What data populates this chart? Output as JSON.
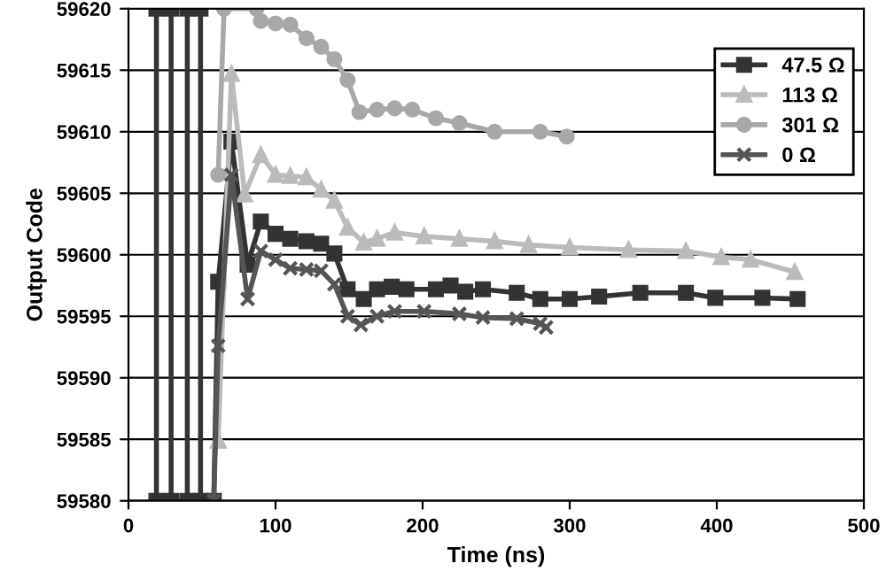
{
  "chart_data": {
    "type": "line",
    "xlabel": "Time (ns)",
    "ylabel": "Output Code",
    "xlim": [
      0,
      500
    ],
    "xticks": [
      0,
      100,
      200,
      300,
      400,
      500
    ],
    "ylim": [
      59580,
      59620
    ],
    "yticks": [
      59580,
      59585,
      59590,
      59595,
      59600,
      59605,
      59610,
      59615,
      59620
    ],
    "grid": "y",
    "legend": "top right",
    "line_style": "solid",
    "series": [
      {
        "name": "47.5 Ω",
        "color": "#333333",
        "marker": "square",
        "x": [
          19,
          19,
          29,
          29,
          40,
          40,
          49,
          49,
          58,
          61,
          70,
          81,
          90,
          100,
          110,
          121,
          131,
          140,
          149,
          160,
          169,
          179,
          189,
          209,
          219,
          229,
          241,
          264,
          280,
          300,
          320,
          348,
          379,
          399,
          431,
          455
        ],
        "values": [
          59580,
          59620,
          59620,
          59580,
          59580,
          59620,
          59620,
          59580,
          59580,
          59597.8,
          59609.2,
          59599.2,
          59602.7,
          59601.7,
          59601.3,
          59601.1,
          59600.9,
          59600.1,
          59597.2,
          59596.4,
          59597.2,
          59597.4,
          59597.2,
          59597.2,
          59597.5,
          59597.0,
          59597.2,
          59596.9,
          59596.4,
          59596.4,
          59596.6,
          59596.9,
          59596.9,
          59596.5,
          59596.5,
          59596.4
        ]
      },
      {
        "name": "113 Ω",
        "color": "#bbbbbb",
        "marker": "triangle",
        "x": [
          61,
          70,
          79,
          90,
          100,
          110,
          121,
          131,
          140,
          149,
          160,
          169,
          181,
          201,
          225,
          249,
          272,
          300,
          340,
          379,
          403,
          423,
          453
        ],
        "values": [
          59584.9,
          59614.7,
          59604.9,
          59608.1,
          59606.5,
          59606.4,
          59606.3,
          59605.3,
          59604.4,
          59602.2,
          59601.0,
          59601.3,
          59601.8,
          59601.5,
          59601.3,
          59601.1,
          59600.8,
          59600.6,
          59600.4,
          59600.3,
          59599.8,
          59599.6,
          59598.6
        ]
      },
      {
        "name": "301 Ω",
        "color": "#a8a8a8",
        "marker": "circle",
        "x": [
          61,
          65,
          87,
          90,
          100,
          110,
          121,
          131,
          140,
          149,
          157,
          169,
          181,
          193,
          209,
          225,
          249,
          280,
          298
        ],
        "values": [
          59606.5,
          59620,
          59620,
          59619,
          59618.8,
          59618.7,
          59617.6,
          59616.9,
          59615.9,
          59614.2,
          59611.6,
          59611.8,
          59611.9,
          59611.8,
          59611.1,
          59610.7,
          59610.0,
          59610.0,
          59609.6
        ]
      },
      {
        "name": "0 Ω",
        "color": "#555555",
        "marker": "cross",
        "x": [
          58,
          61,
          70,
          81,
          90,
          100,
          110,
          121,
          131,
          140,
          149,
          158,
          169,
          181,
          201,
          225,
          241,
          264,
          280,
          284
        ],
        "values": [
          59580,
          59592.6,
          59606.5,
          59596.4,
          59600.3,
          59599.6,
          59598.9,
          59598.8,
          59598.7,
          59597.6,
          59595.0,
          59594.3,
          59595.0,
          59595.4,
          59595.4,
          59595.2,
          59594.9,
          59594.8,
          59594.4,
          59594.1
        ]
      }
    ]
  }
}
